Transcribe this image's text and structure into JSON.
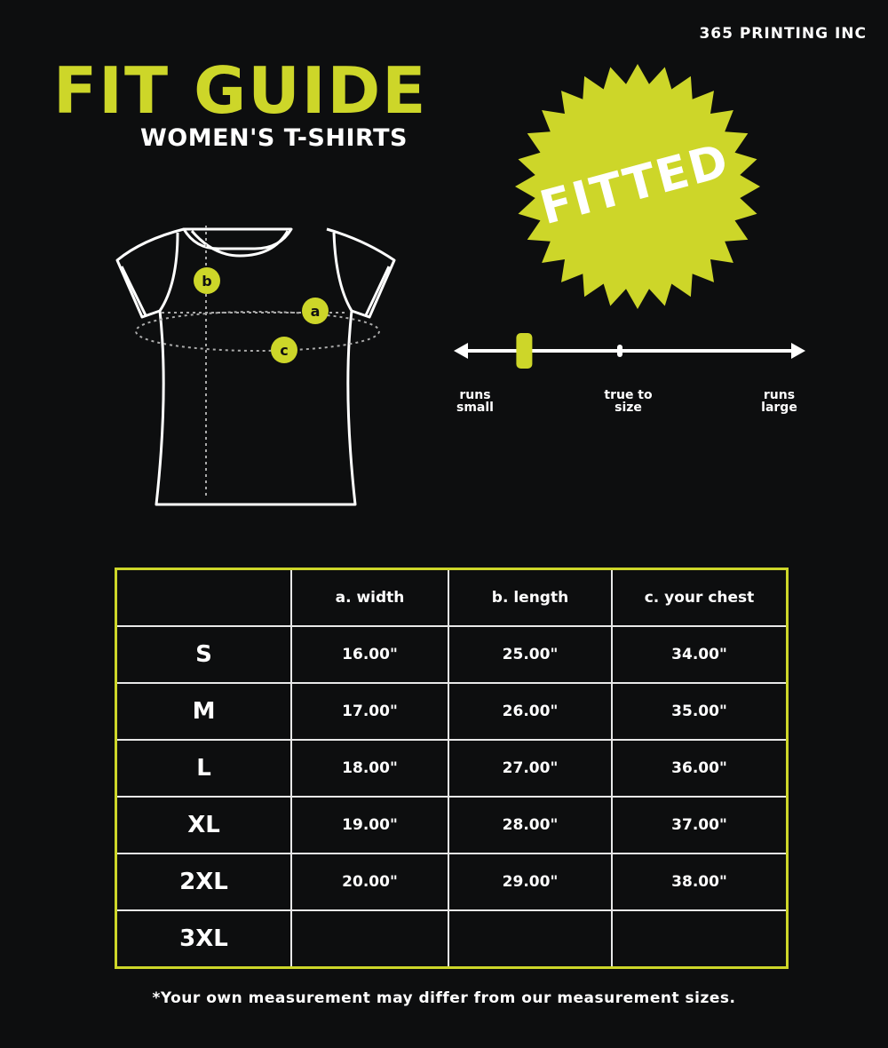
{
  "brand": "365 PRINTING INC",
  "title": "FIT GUIDE",
  "subtitle": "WOMEN'S T-SHIRTS",
  "badge": {
    "text": "FITTED",
    "color": "#cdd629"
  },
  "diagram_labels": {
    "a": "a",
    "b": "b",
    "c": "c"
  },
  "fit_scale": {
    "labels": [
      "runs small",
      "true to size",
      "runs large"
    ],
    "position_fraction": 0.19
  },
  "table": {
    "headers": [
      "",
      "a. width",
      "b. length",
      "c. your chest"
    ],
    "rows": [
      [
        "S",
        "16.00\"",
        "25.00\"",
        "34.00\""
      ],
      [
        "M",
        "17.00\"",
        "26.00\"",
        "35.00\""
      ],
      [
        "L",
        "18.00\"",
        "27.00\"",
        "36.00\""
      ],
      [
        "XL",
        "19.00\"",
        "28.00\"",
        "37.00\""
      ],
      [
        "2XL",
        "20.00\"",
        "29.00\"",
        "38.00\""
      ],
      [
        "3XL",
        "",
        "",
        ""
      ]
    ]
  },
  "note": "*Your own measurement may differ from our measurement sizes.",
  "colors": {
    "accent": "#cdd629",
    "background": "#0d0e0f"
  }
}
